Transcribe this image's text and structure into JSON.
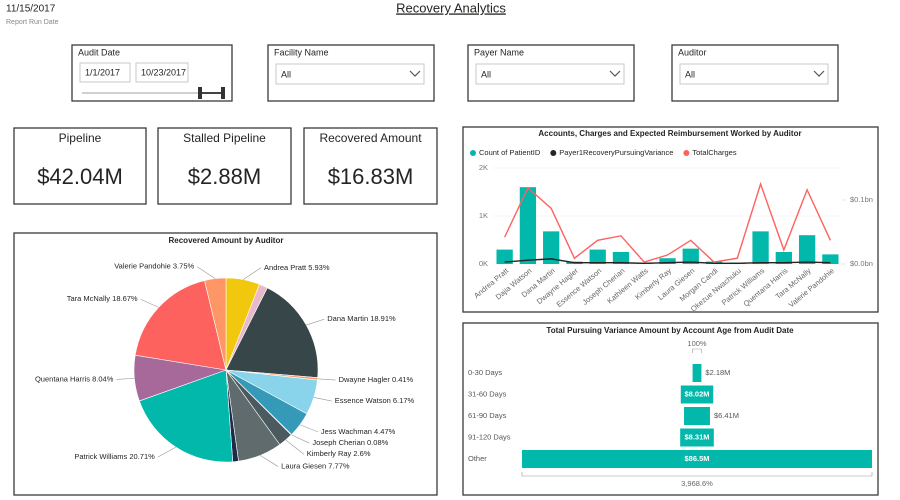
{
  "header": {
    "date": "11/15/2017",
    "date_caption": "Report Run Date",
    "title": "Recovery Analytics"
  },
  "filters": [
    {
      "label": "Audit Date",
      "from": "1/1/2017",
      "to": "10/23/2017"
    },
    {
      "label": "Facility Name",
      "value": "All"
    },
    {
      "label": "Payer Name",
      "value": "All"
    },
    {
      "label": "Auditor",
      "value": "All"
    }
  ],
  "cards": [
    {
      "label": "Pipeline",
      "value": "$42.04M"
    },
    {
      "label": "Stalled Pipeline",
      "value": "$2.88M"
    },
    {
      "label": "Recovered Amount",
      "value": "$16.83M"
    }
  ],
  "chart_data": [
    {
      "type": "pie",
      "title": "Recovered Amount by Auditor",
      "categories": [
        "Andrea Pratt",
        null,
        "Dana Martin",
        "Dwayne Hagler",
        "Essence Watson",
        "Jess Wachman",
        "Joseph Cherian",
        "Kimberly Ray",
        "Laura Giesen",
        null,
        "Patrick Williams",
        "Quentana Harris",
        "Tara McNally",
        "Valerie Pandohie"
      ],
      "values": [
        5.93,
        1.49,
        18.91,
        0.41,
        6.17,
        4.47,
        0.08,
        2.6,
        7.77,
        1.0,
        20.71,
        8.04,
        18.67,
        3.75
      ],
      "value_labels": [
        "5.93%",
        null,
        "18.91%",
        "0.41%",
        "6.17%",
        "4.47%",
        "0.08%",
        "2.6%",
        "7.77%",
        null,
        "20.71%",
        "8.04%",
        "18.67%",
        "3.75%"
      ],
      "colors": [
        "#f2c80f",
        "#e8b9c9",
        "#374649",
        "#fe9666",
        "#8ad4eb",
        "#3599b8",
        "#dfbfbf",
        "#4a5a5e",
        "#5f6b6d",
        "#1c2b4a",
        "#01b8aa",
        "#a66999",
        "#fd625e",
        "#fe9666"
      ]
    },
    {
      "type": "combo",
      "title": "Accounts, Charges and Expected Reimbursement Worked by Auditor",
      "categories": [
        "Andrea Pratt",
        "Dajia Watson",
        "Dana Martin",
        "Dwayne Hagler",
        "Essence Watson",
        "Joseph Cherian",
        "Kathleen Watts",
        "Kimberly Ray",
        "Laura Giesen",
        "Morgan Candi",
        "Okezue Nwachuku",
        "Patrick Williams",
        "Quentana Harris",
        "Tara McNally",
        "Valerie Pandohie"
      ],
      "series": [
        {
          "name": "Count of PatientID",
          "type": "bar",
          "color": "#01b8aa",
          "values": [
            300,
            1600,
            680,
            50,
            300,
            250,
            20,
            120,
            320,
            50,
            30,
            680,
            250,
            600,
            200
          ]
        },
        {
          "name": "Payer1RecoveryPursuingVariance",
          "type": "line",
          "axis": "y2",
          "color": "#252423",
          "values": [
            3000000,
            6000000,
            8000000,
            2000000,
            2000000,
            2000000,
            1000000,
            2000000,
            3000000,
            1000000,
            1000000,
            2000000,
            2000000,
            3000000,
            2000000
          ]
        },
        {
          "name": "TotalCharges",
          "type": "line",
          "axis": "y2",
          "color": "#fd625e",
          "values": [
            42000000,
            119000000,
            87000000,
            9000000,
            37000000,
            44000000,
            3000000,
            14000000,
            37000000,
            3000000,
            9000000,
            125000000,
            22000000,
            116000000,
            37000000
          ]
        }
      ],
      "ylim": [
        0,
        2000
      ],
      "yticks": [
        {
          "value": 0,
          "label": "0K"
        },
        {
          "value": 1000,
          "label": "1K"
        },
        {
          "value": 2000,
          "label": "2K"
        }
      ],
      "y2lim": [
        0,
        150000000
      ],
      "y2ticks": [
        {
          "value": 0,
          "label": "$0.0bn"
        },
        {
          "value": 100000000,
          "label": "$0.1bn"
        }
      ]
    },
    {
      "type": "funnel",
      "title": "Total Pursuing Variance Amount by Account Age from Audit Date",
      "categories": [
        "0-30 Days",
        "31-60 Days",
        "61-90 Days",
        "91-120 Days",
        "Other"
      ],
      "values": [
        2180000,
        8020000,
        6410000,
        8310000,
        86500000
      ],
      "value_labels": [
        "$2.18M",
        "$8.02M",
        "$6.41M",
        "$8.31M",
        "$86.5M"
      ],
      "color": "#01b8aa",
      "annotations": {
        "top": "100%",
        "bottom": "3,968.6%"
      }
    }
  ]
}
